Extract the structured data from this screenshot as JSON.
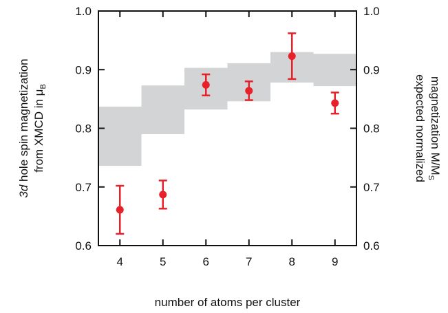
{
  "chart_data": {
    "type": "scatter",
    "xlabel": "number of atoms per cluster",
    "ylabel_left": {
      "line1_italic": "3d",
      "line1_rest": " hole spin magnetization",
      "line2_main": "from XMCD in μ",
      "line2_sub": "B"
    },
    "ylabel_right": {
      "line1": "expected normalized",
      "line2_main": "magnetization M/M",
      "line2_sub": "S"
    },
    "xlim": [
      3.5,
      9.5
    ],
    "ylim_left": [
      0.6,
      1.0
    ],
    "ylim_right": [
      0.6,
      1.0
    ],
    "x_ticks": [
      4,
      5,
      6,
      7,
      8,
      9
    ],
    "x_tick_labels": [
      "4",
      "5",
      "6",
      "7",
      "8",
      "9"
    ],
    "y_ticks": [
      0.6,
      0.7,
      0.8,
      0.9,
      1.0
    ],
    "y_tick_labels": [
      "0.6",
      "0.7",
      "0.8",
      "0.9",
      "1.0"
    ],
    "grid": false,
    "colors": {
      "points": "#e8202a",
      "band": "#d3d4d5",
      "axis": "#111111"
    },
    "series": [
      {
        "kind": "points_with_error_bars",
        "x": [
          4,
          5,
          6,
          7,
          8,
          9
        ],
        "y": [
          0.661,
          0.687,
          0.874,
          0.864,
          0.923,
          0.843
        ],
        "err": [
          0.041,
          0.024,
          0.018,
          0.016,
          0.039,
          0.018
        ]
      },
      {
        "kind": "range_band",
        "x": [
          4,
          5,
          6,
          7,
          8,
          9
        ],
        "low": [
          0.736,
          0.79,
          0.832,
          0.846,
          0.878,
          0.872
        ],
        "high": [
          0.837,
          0.873,
          0.903,
          0.911,
          0.93,
          0.927
        ]
      }
    ]
  }
}
